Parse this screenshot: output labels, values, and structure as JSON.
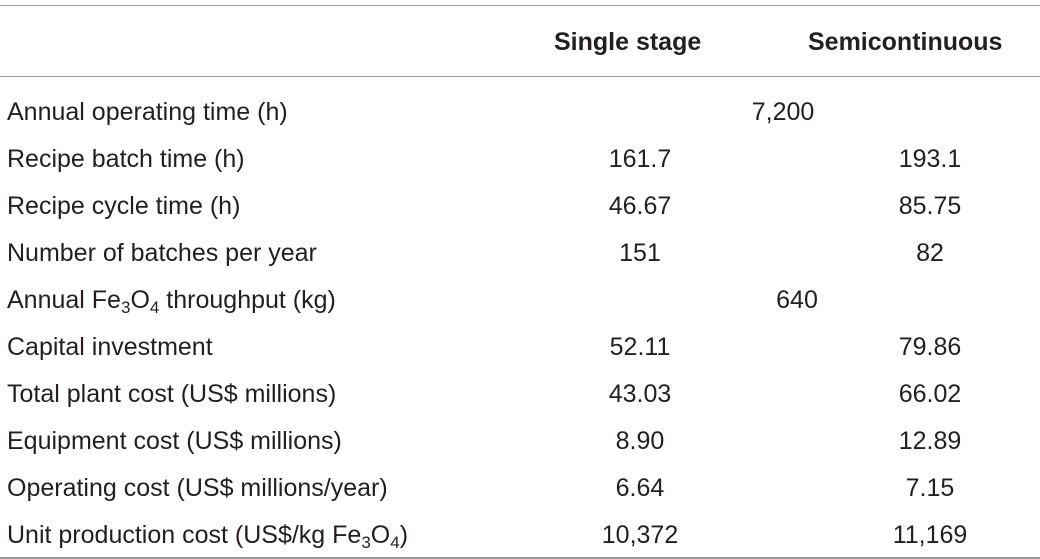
{
  "table": {
    "columns": [
      "",
      "Single stage",
      "Semicontinuous"
    ],
    "rows": [
      {
        "label": "Annual operating time (h)",
        "merged": "7,200"
      },
      {
        "label": "Recipe batch time (h)",
        "single": "161.7",
        "semi": "193.1"
      },
      {
        "label": "Recipe cycle time (h)",
        "single": "46.67",
        "semi": "85.75"
      },
      {
        "label": "Number of batches per year",
        "single": "151",
        "semi": "82"
      },
      {
        "label_pre": "Annual Fe",
        "sub1": "3",
        "label_mid": "O",
        "sub2": "4",
        "label_post": " throughput (kg)",
        "merged": "640"
      },
      {
        "label": "Capital investment",
        "single": "52.11",
        "semi": "79.86"
      },
      {
        "label": "Total plant cost (US$ millions)",
        "single": "43.03",
        "semi": "66.02"
      },
      {
        "label": "Equipment cost (US$ millions)",
        "single": "8.90",
        "semi": "12.89"
      },
      {
        "label": "Operating cost (US$ millions/year)",
        "single": "6.64",
        "semi": "7.15"
      },
      {
        "label_pre": "Unit production cost (US$/kg Fe",
        "sub1": "3",
        "label_mid": "O",
        "sub2": "4",
        "label_post": ")",
        "single": "10,372",
        "semi": "11,169"
      }
    ]
  }
}
